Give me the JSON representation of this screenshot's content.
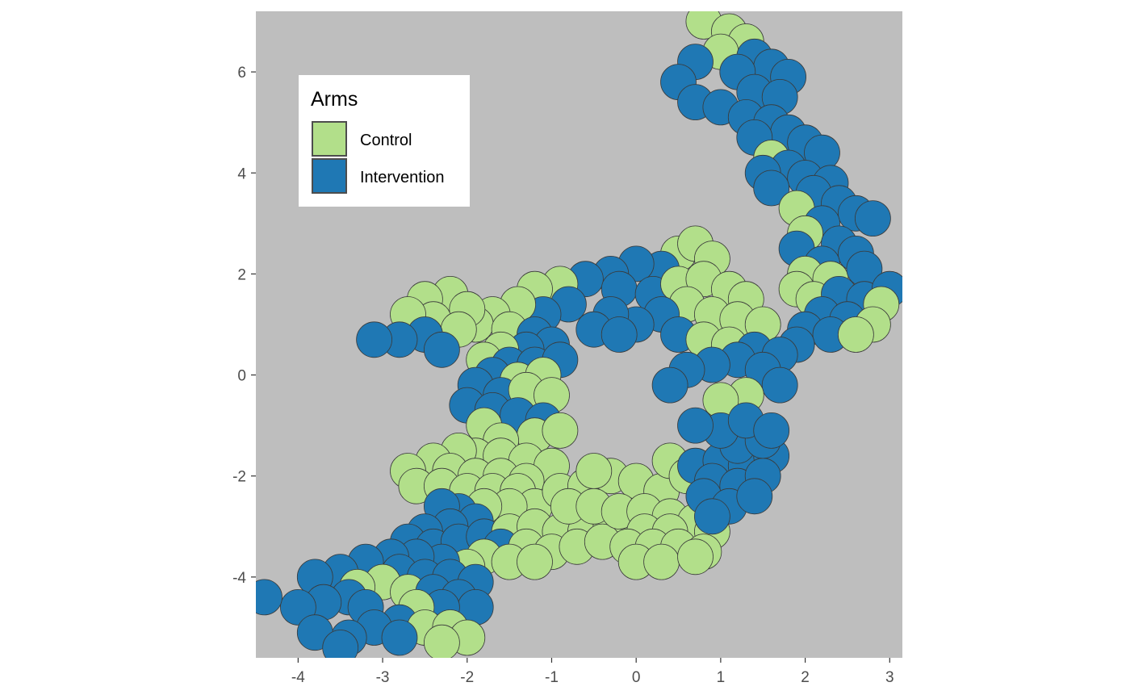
{
  "chart_data": {
    "type": "map",
    "title": "",
    "xlabel": "",
    "ylabel": "",
    "xlim": [
      -4.5,
      3.15
    ],
    "ylim": [
      -5.6,
      7.2
    ],
    "x_ticks": [
      {
        "value": -4,
        "label": "-4"
      },
      {
        "value": -3,
        "label": "-3"
      },
      {
        "value": -2,
        "label": "-2"
      },
      {
        "value": -1,
        "label": "-1"
      },
      {
        "value": 0,
        "label": "0"
      },
      {
        "value": 1,
        "label": "1"
      },
      {
        "value": 2,
        "label": "2"
      },
      {
        "value": 3,
        "label": "3"
      }
    ],
    "y_ticks": [
      {
        "value": -4,
        "label": "-4"
      },
      {
        "value": -2,
        "label": "-2"
      },
      {
        "value": 0,
        "label": "0"
      },
      {
        "value": 2,
        "label": "2"
      },
      {
        "value": 4,
        "label": "4"
      },
      {
        "value": 6,
        "label": "6"
      }
    ],
    "grid": false,
    "panel_background": "#bebebe",
    "legend": {
      "title": "Arms",
      "placement": "top-left",
      "entries": [
        {
          "label": "Control",
          "color": "#b2df8a"
        },
        {
          "label": "Intervention",
          "color": "#1f78b4"
        }
      ]
    },
    "colors": {
      "Control": "#b2df8a",
      "Intervention": "#1f78b4"
    },
    "points": [
      [
        0.8,
        7.0,
        "C"
      ],
      [
        1.1,
        6.8,
        "C"
      ],
      [
        1.3,
        6.6,
        "C"
      ],
      [
        1.0,
        6.4,
        "C"
      ],
      [
        1.4,
        6.3,
        "I"
      ],
      [
        1.6,
        6.1,
        "I"
      ],
      [
        1.2,
        6.0,
        "I"
      ],
      [
        0.7,
        6.2,
        "I"
      ],
      [
        0.5,
        5.8,
        "I"
      ],
      [
        1.8,
        5.9,
        "I"
      ],
      [
        1.4,
        5.6,
        "I"
      ],
      [
        1.7,
        5.5,
        "I"
      ],
      [
        0.7,
        5.4,
        "I"
      ],
      [
        1.0,
        5.3,
        "I"
      ],
      [
        1.3,
        5.1,
        "I"
      ],
      [
        1.6,
        5.0,
        "I"
      ],
      [
        1.8,
        4.8,
        "I"
      ],
      [
        1.4,
        4.7,
        "I"
      ],
      [
        2.0,
        4.6,
        "I"
      ],
      [
        2.2,
        4.4,
        "I"
      ],
      [
        1.6,
        4.3,
        "C"
      ],
      [
        1.8,
        4.1,
        "I"
      ],
      [
        1.5,
        4.0,
        "I"
      ],
      [
        2.0,
        3.9,
        "I"
      ],
      [
        2.3,
        3.8,
        "I"
      ],
      [
        1.6,
        3.7,
        "I"
      ],
      [
        2.1,
        3.6,
        "I"
      ],
      [
        2.4,
        3.4,
        "I"
      ],
      [
        1.9,
        3.3,
        "C"
      ],
      [
        2.6,
        3.2,
        "I"
      ],
      [
        2.2,
        3.0,
        "I"
      ],
      [
        2.8,
        3.1,
        "I"
      ],
      [
        2.0,
        2.8,
        "C"
      ],
      [
        2.4,
        2.6,
        "I"
      ],
      [
        1.9,
        2.5,
        "I"
      ],
      [
        2.6,
        2.4,
        "I"
      ],
      [
        2.2,
        2.2,
        "I"
      ],
      [
        2.0,
        2.0,
        "C"
      ],
      [
        2.3,
        1.9,
        "C"
      ],
      [
        2.7,
        2.1,
        "I"
      ],
      [
        1.9,
        1.7,
        "C"
      ],
      [
        2.1,
        1.5,
        "C"
      ],
      [
        2.4,
        1.6,
        "I"
      ],
      [
        2.7,
        1.5,
        "I"
      ],
      [
        3.0,
        1.7,
        "I"
      ],
      [
        2.9,
        1.4,
        "C"
      ],
      [
        2.2,
        1.2,
        "I"
      ],
      [
        2.5,
        1.1,
        "I"
      ],
      [
        2.8,
        1.0,
        "C"
      ],
      [
        2.0,
        0.9,
        "I"
      ],
      [
        2.3,
        0.8,
        "I"
      ],
      [
        1.9,
        0.6,
        "I"
      ],
      [
        2.6,
        0.8,
        "C"
      ],
      [
        0.5,
        2.4,
        "C"
      ],
      [
        0.7,
        2.6,
        "C"
      ],
      [
        0.9,
        2.3,
        "C"
      ],
      [
        0.3,
        2.1,
        "I"
      ],
      [
        0.0,
        2.2,
        "I"
      ],
      [
        -0.3,
        2.0,
        "I"
      ],
      [
        -0.6,
        1.9,
        "I"
      ],
      [
        -0.9,
        1.8,
        "C"
      ],
      [
        -1.2,
        1.7,
        "C"
      ],
      [
        -0.2,
        1.7,
        "I"
      ],
      [
        0.2,
        1.6,
        "I"
      ],
      [
        0.5,
        1.8,
        "C"
      ],
      [
        0.8,
        1.9,
        "C"
      ],
      [
        1.1,
        1.7,
        "C"
      ],
      [
        1.3,
        1.5,
        "C"
      ],
      [
        0.6,
        1.4,
        "C"
      ],
      [
        0.9,
        1.2,
        "C"
      ],
      [
        1.2,
        1.1,
        "C"
      ],
      [
        1.5,
        1.0,
        "C"
      ],
      [
        0.3,
        1.2,
        "I"
      ],
      [
        0.0,
        1.0,
        "I"
      ],
      [
        -0.3,
        1.2,
        "I"
      ],
      [
        -0.5,
        0.9,
        "I"
      ],
      [
        -0.2,
        0.8,
        "I"
      ],
      [
        0.5,
        0.8,
        "I"
      ],
      [
        0.8,
        0.7,
        "C"
      ],
      [
        1.1,
        0.6,
        "C"
      ],
      [
        1.4,
        0.5,
        "I"
      ],
      [
        1.7,
        0.4,
        "I"
      ],
      [
        1.2,
        0.3,
        "I"
      ],
      [
        0.9,
        0.2,
        "I"
      ],
      [
        0.6,
        0.1,
        "I"
      ],
      [
        0.4,
        -0.2,
        "I"
      ],
      [
        1.5,
        0.1,
        "I"
      ],
      [
        1.7,
        -0.2,
        "I"
      ],
      [
        1.3,
        -0.4,
        "C"
      ],
      [
        1.0,
        -0.5,
        "C"
      ],
      [
        -0.8,
        1.4,
        "I"
      ],
      [
        -1.1,
        1.2,
        "I"
      ],
      [
        -1.4,
        1.4,
        "C"
      ],
      [
        -1.7,
        1.2,
        "C"
      ],
      [
        -1.9,
        1.0,
        "C"
      ],
      [
        -1.5,
        0.9,
        "C"
      ],
      [
        -1.2,
        0.8,
        "I"
      ],
      [
        -1.0,
        0.6,
        "I"
      ],
      [
        -1.3,
        0.5,
        "I"
      ],
      [
        -1.6,
        0.5,
        "C"
      ],
      [
        -1.8,
        0.3,
        "C"
      ],
      [
        -1.5,
        0.2,
        "I"
      ],
      [
        -1.2,
        0.2,
        "I"
      ],
      [
        -0.9,
        0.3,
        "I"
      ],
      [
        -1.7,
        0.0,
        "I"
      ],
      [
        -1.4,
        -0.1,
        "C"
      ],
      [
        -1.1,
        0.0,
        "C"
      ],
      [
        -1.9,
        -0.2,
        "I"
      ],
      [
        -1.6,
        -0.4,
        "I"
      ],
      [
        -1.3,
        -0.3,
        "C"
      ],
      [
        -1.0,
        -0.4,
        "C"
      ],
      [
        -2.0,
        -0.6,
        "I"
      ],
      [
        -1.7,
        -0.7,
        "I"
      ],
      [
        -1.4,
        -0.8,
        "I"
      ],
      [
        -1.1,
        -0.9,
        "I"
      ],
      [
        -1.2,
        -1.2,
        "C"
      ],
      [
        -0.9,
        -1.1,
        "C"
      ],
      [
        -1.8,
        -1.0,
        "C"
      ],
      [
        -1.6,
        -1.3,
        "C"
      ],
      [
        -2.2,
        1.6,
        "C"
      ],
      [
        -2.5,
        1.5,
        "C"
      ],
      [
        -2.0,
        1.3,
        "C"
      ],
      [
        -2.4,
        1.1,
        "C"
      ],
      [
        -2.7,
        1.2,
        "C"
      ],
      [
        -2.1,
        0.9,
        "C"
      ],
      [
        -2.5,
        0.8,
        "I"
      ],
      [
        -2.8,
        0.7,
        "I"
      ],
      [
        -3.1,
        0.7,
        "I"
      ],
      [
        -2.3,
        0.5,
        "I"
      ],
      [
        -1.9,
        -1.6,
        "C"
      ],
      [
        -2.1,
        -1.5,
        "C"
      ],
      [
        -1.6,
        -1.6,
        "C"
      ],
      [
        -1.3,
        -1.7,
        "C"
      ],
      [
        -1.0,
        -1.8,
        "C"
      ],
      [
        -2.4,
        -1.7,
        "C"
      ],
      [
        -2.7,
        -1.9,
        "C"
      ],
      [
        -2.2,
        -1.9,
        "C"
      ],
      [
        -1.9,
        -2.0,
        "C"
      ],
      [
        -1.6,
        -2.0,
        "C"
      ],
      [
        -1.3,
        -2.1,
        "C"
      ],
      [
        -2.6,
        -2.2,
        "C"
      ],
      [
        -2.3,
        -2.2,
        "C"
      ],
      [
        -2.0,
        -2.3,
        "C"
      ],
      [
        -1.7,
        -2.3,
        "C"
      ],
      [
        -1.4,
        -2.3,
        "C"
      ],
      [
        -1.2,
        -2.6,
        "C"
      ],
      [
        -1.5,
        -2.6,
        "C"
      ],
      [
        -1.8,
        -2.6,
        "C"
      ],
      [
        -2.1,
        -2.7,
        "I"
      ],
      [
        -2.3,
        -2.6,
        "I"
      ],
      [
        -1.9,
        -2.9,
        "I"
      ],
      [
        -2.2,
        -3.0,
        "I"
      ],
      [
        -2.5,
        -3.1,
        "I"
      ],
      [
        -2.7,
        -3.3,
        "I"
      ],
      [
        -2.4,
        -3.4,
        "I"
      ],
      [
        -2.1,
        -3.3,
        "I"
      ],
      [
        -1.8,
        -3.2,
        "I"
      ],
      [
        -1.5,
        -3.1,
        "C"
      ],
      [
        -1.2,
        -3.0,
        "C"
      ],
      [
        -0.9,
        -3.1,
        "C"
      ],
      [
        -0.6,
        -3.1,
        "C"
      ],
      [
        -0.3,
        -3.0,
        "C"
      ],
      [
        -1.6,
        -3.4,
        "I"
      ],
      [
        -1.3,
        -3.4,
        "C"
      ],
      [
        -1.0,
        -3.5,
        "C"
      ],
      [
        -0.7,
        -3.4,
        "C"
      ],
      [
        -0.4,
        -3.3,
        "C"
      ],
      [
        -1.8,
        -3.6,
        "C"
      ],
      [
        -1.5,
        -3.7,
        "C"
      ],
      [
        -1.2,
        -3.7,
        "C"
      ],
      [
        -2.0,
        -3.8,
        "C"
      ],
      [
        -2.3,
        -3.7,
        "I"
      ],
      [
        -2.6,
        -3.6,
        "I"
      ],
      [
        -2.9,
        -3.6,
        "I"
      ],
      [
        -3.2,
        -3.7,
        "I"
      ],
      [
        -3.5,
        -3.9,
        "I"
      ],
      [
        -3.8,
        -4.0,
        "I"
      ],
      [
        -2.8,
        -3.9,
        "I"
      ],
      [
        -2.5,
        -4.0,
        "I"
      ],
      [
        -2.2,
        -4.0,
        "I"
      ],
      [
        -1.9,
        -4.1,
        "I"
      ],
      [
        -3.0,
        -4.1,
        "C"
      ],
      [
        -3.3,
        -4.2,
        "C"
      ],
      [
        -2.7,
        -4.3,
        "C"
      ],
      [
        -2.4,
        -4.3,
        "I"
      ],
      [
        -2.1,
        -4.4,
        "I"
      ],
      [
        -1.9,
        -4.6,
        "I"
      ],
      [
        -2.3,
        -4.6,
        "I"
      ],
      [
        -3.4,
        -4.4,
        "I"
      ],
      [
        -3.7,
        -4.5,
        "I"
      ],
      [
        -4.0,
        -4.6,
        "I"
      ],
      [
        -4.4,
        -4.4,
        "I"
      ],
      [
        -3.2,
        -4.6,
        "I"
      ],
      [
        -2.6,
        -4.6,
        "C"
      ],
      [
        -2.8,
        -4.9,
        "I"
      ],
      [
        -3.1,
        -5.0,
        "I"
      ],
      [
        -2.5,
        -5.0,
        "C"
      ],
      [
        -2.2,
        -5.0,
        "C"
      ],
      [
        -2.0,
        -5.2,
        "C"
      ],
      [
        -2.3,
        -5.3,
        "C"
      ],
      [
        -3.4,
        -5.2,
        "I"
      ],
      [
        -3.8,
        -5.1,
        "I"
      ],
      [
        -3.5,
        -5.4,
        "I"
      ],
      [
        -2.8,
        -5.2,
        "I"
      ],
      [
        -0.9,
        -2.3,
        "C"
      ],
      [
        -0.6,
        -2.2,
        "C"
      ],
      [
        -0.3,
        -2.0,
        "C"
      ],
      [
        -0.5,
        -1.9,
        "C"
      ],
      [
        0.0,
        -2.1,
        "C"
      ],
      [
        0.3,
        -2.3,
        "C"
      ],
      [
        -0.8,
        -2.6,
        "C"
      ],
      [
        -0.5,
        -2.6,
        "C"
      ],
      [
        -0.2,
        -2.7,
        "C"
      ],
      [
        0.1,
        -2.7,
        "C"
      ],
      [
        0.4,
        -2.8,
        "C"
      ],
      [
        0.7,
        -2.9,
        "C"
      ],
      [
        0.9,
        -3.1,
        "C"
      ],
      [
        0.1,
        -3.1,
        "C"
      ],
      [
        0.4,
        -3.1,
        "C"
      ],
      [
        -0.1,
        -3.4,
        "C"
      ],
      [
        0.2,
        -3.4,
        "C"
      ],
      [
        0.5,
        -3.4,
        "C"
      ],
      [
        0.8,
        -3.5,
        "C"
      ],
      [
        0.0,
        -3.7,
        "C"
      ],
      [
        0.3,
        -3.7,
        "C"
      ],
      [
        0.7,
        -3.6,
        "C"
      ],
      [
        0.4,
        -1.7,
        "C"
      ],
      [
        0.6,
        -2.0,
        "C"
      ],
      [
        0.7,
        -1.8,
        "I"
      ],
      [
        1.0,
        -1.7,
        "I"
      ],
      [
        1.3,
        -1.8,
        "I"
      ],
      [
        1.6,
        -1.6,
        "I"
      ],
      [
        0.9,
        -2.1,
        "I"
      ],
      [
        1.2,
        -2.2,
        "I"
      ],
      [
        1.5,
        -2.0,
        "I"
      ],
      [
        0.8,
        -2.4,
        "I"
      ],
      [
        1.1,
        -2.6,
        "I"
      ],
      [
        0.9,
        -2.8,
        "I"
      ],
      [
        1.2,
        -1.4,
        "I"
      ],
      [
        1.5,
        -1.3,
        "I"
      ],
      [
        1.0,
        -1.1,
        "I"
      ],
      [
        0.7,
        -1.0,
        "I"
      ],
      [
        1.3,
        -0.9,
        "I"
      ],
      [
        1.6,
        -1.1,
        "I"
      ],
      [
        1.4,
        -2.4,
        "I"
      ]
    ]
  }
}
